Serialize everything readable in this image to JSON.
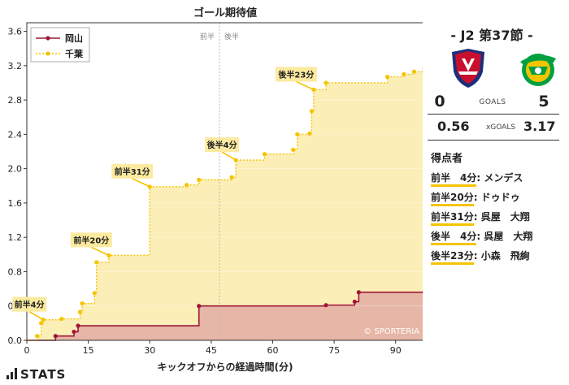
{
  "chart_data": {
    "type": "line",
    "title": "ゴール期待値",
    "xlabel": "キックオフからの経過時間(分)",
    "ylabel": "",
    "xlim": [
      0,
      97
    ],
    "ylim": [
      0,
      3.7
    ],
    "x_ticks": [
      0,
      15,
      30,
      45,
      60,
      75,
      90
    ],
    "y_ticks": [
      0,
      0.4,
      0.8,
      1.2,
      1.6,
      2.0,
      2.4,
      2.8,
      3.2,
      3.6
    ],
    "x_tick_labels": [
      "0",
      "15",
      "30",
      "45",
      "60",
      "75",
      "90"
    ],
    "y_tick_labels": [
      "0.0",
      "0.4",
      "0.8",
      "1.2",
      "1.6",
      "2.0",
      "2.4",
      "2.8",
      "3.2",
      "3.6"
    ],
    "halftime_x": 47,
    "halftime_labels": [
      "前半",
      "後半"
    ],
    "watermark": "© SPORTERIA",
    "legend_position": "top-left",
    "series": [
      {
        "name": "岡山",
        "color": "#a0163a",
        "fill": "#e6b6a6",
        "style": "solid",
        "points": [
          [
            0,
            0
          ],
          [
            7,
            0.05
          ],
          [
            11.5,
            0.1
          ],
          [
            12.5,
            0.17
          ],
          [
            42,
            0.4
          ],
          [
            73,
            0.41
          ],
          [
            80,
            0.45
          ],
          [
            81,
            0.56
          ],
          [
            97,
            0.56
          ]
        ]
      },
      {
        "name": "千葉",
        "color": "#f5c400",
        "fill": "#fbeeb6",
        "style": "dotted",
        "points": [
          [
            0,
            0
          ],
          [
            2.5,
            0.05
          ],
          [
            3.5,
            0.2
          ],
          [
            4,
            0.24
          ],
          [
            8.5,
            0.25
          ],
          [
            13,
            0.33
          ],
          [
            13.5,
            0.43
          ],
          [
            16.5,
            0.55
          ],
          [
            17,
            0.91
          ],
          [
            20,
            0.99
          ],
          [
            30,
            1.79
          ],
          [
            39,
            1.81
          ],
          [
            42,
            1.87
          ],
          [
            50,
            1.9
          ],
          [
            51,
            2.1
          ],
          [
            58,
            2.17
          ],
          [
            65,
            2.22
          ],
          [
            66,
            2.4
          ],
          [
            69,
            2.41
          ],
          [
            69.5,
            2.67
          ],
          [
            70,
            2.92
          ],
          [
            73,
            3.0
          ],
          [
            88,
            3.07
          ],
          [
            92,
            3.1
          ],
          [
            94.5,
            3.13
          ],
          [
            97,
            3.17
          ]
        ]
      }
    ],
    "goal_annotations": [
      {
        "label": "前半4分",
        "x": 4,
        "y": 0.24
      },
      {
        "label": "前半20分",
        "x": 20,
        "y": 0.99
      },
      {
        "label": "前半31分",
        "x": 30,
        "y": 1.79
      },
      {
        "label": "後半4分",
        "x": 51,
        "y": 2.1
      },
      {
        "label": "後半23分",
        "x": 70,
        "y": 2.92
      }
    ]
  },
  "match": {
    "title": "- J2 第37節 -",
    "home_team": "岡山",
    "away_team": "千葉",
    "home_color": "#c8102e",
    "home_color2": "#1d2f7a",
    "away_color": "#f5c400",
    "away_color2": "#00a040",
    "goals_label": "GOALS",
    "home_goals": "0",
    "away_goals": "5",
    "xgoals_label": "xGOALS",
    "home_xg": "0.56",
    "away_xg": "3.17"
  },
  "scorers": {
    "title": "得点者",
    "items": [
      {
        "time": "前半　4分",
        "name": "メンデス"
      },
      {
        "time": "前半20分",
        "name": "ドゥドゥ"
      },
      {
        "time": "前半31分",
        "name": "呉屋　大翔"
      },
      {
        "time": "後半　4分",
        "name": "呉屋　大翔"
      },
      {
        "time": "後半23分",
        "name": "小森　飛絢"
      }
    ]
  },
  "brand": {
    "stats": "STATS"
  }
}
